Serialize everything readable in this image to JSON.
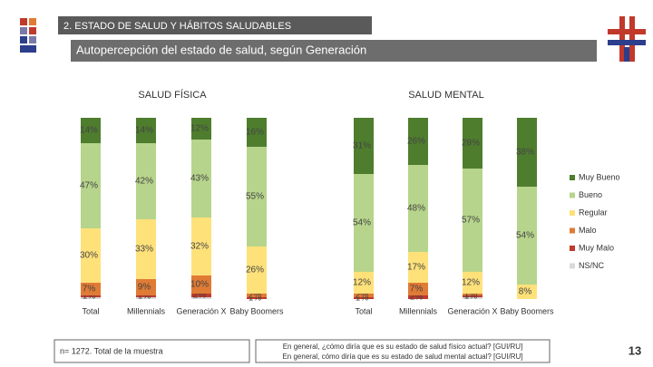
{
  "slide": {
    "section": "2. ESTADO DE SALUD Y HÁBITOS SALUDABLES",
    "subtitle": "Autopercepción del estado de salud, según Generación",
    "sample": "n= 1272. Total de la muestra",
    "question": [
      "En general, ¿cómo diría que es su estado de salud físico actual? [GUI/RU]",
      "En general, cómo diría que es su estado de salud mental actual? [GUI/RU]"
    ],
    "page": "13"
  },
  "chart_data": [
    {
      "type": "stacked_bar",
      "title": "SALUD FÍSICA",
      "categories": [
        "Total",
        "Millennials",
        "Generación X",
        "Baby Boomers"
      ],
      "series": [
        {
          "name": "NS/NC",
          "color": "#d9d9d9",
          "values": [
            1,
            1,
            1,
            0
          ],
          "value_labels": [
            null,
            null,
            null,
            null
          ]
        },
        {
          "name": "Muy Malo",
          "color": "#c0392b",
          "values": [
            1,
            1,
            2,
            1
          ],
          "value_labels": [
            "1%",
            "1%",
            "2%",
            "1%"
          ]
        },
        {
          "name": "Malo",
          "color": "#e07b35",
          "values": [
            7,
            9,
            10,
            2
          ],
          "value_labels": [
            "7%",
            "9%",
            "10%",
            "2%"
          ]
        },
        {
          "name": "Regular",
          "color": "#ffe17a",
          "values": [
            30,
            33,
            32,
            26
          ],
          "value_labels": [
            "30%",
            "33%",
            "32%",
            "26%"
          ]
        },
        {
          "name": "Bueno",
          "color": "#b6d48b",
          "values": [
            47,
            42,
            43,
            55
          ],
          "value_labels": [
            "47%",
            "42%",
            "43%",
            "55%"
          ]
        },
        {
          "name": "Muy Bueno",
          "color": "#4e7d2e",
          "values": [
            14,
            14,
            12,
            16
          ],
          "value_labels": [
            "14%",
            "14%",
            "12%",
            "16%"
          ]
        }
      ]
    },
    {
      "type": "stacked_bar",
      "title": "SALUD MENTAL",
      "categories": [
        "Total",
        "Millennials",
        "Generación X",
        "Baby Boomers"
      ],
      "series": [
        {
          "name": "NS/NC",
          "color": "#d9d9d9",
          "values": [
            0,
            0,
            1,
            0
          ],
          "value_labels": [
            null,
            null,
            null,
            null
          ]
        },
        {
          "name": "Muy Malo",
          "color": "#c0392b",
          "values": [
            1,
            2,
            1,
            0
          ],
          "value_labels": [
            "1%",
            "2%",
            "1%",
            null
          ]
        },
        {
          "name": "Malo",
          "color": "#e07b35",
          "values": [
            2,
            7,
            1,
            0
          ],
          "value_labels": [
            "2%",
            "7%",
            "1%",
            null
          ]
        },
        {
          "name": "Regular",
          "color": "#ffe17a",
          "values": [
            12,
            17,
            12,
            8
          ],
          "value_labels": [
            "12%",
            "17%",
            "12%",
            "8%"
          ]
        },
        {
          "name": "Bueno",
          "color": "#b6d48b",
          "values": [
            54,
            48,
            57,
            54
          ],
          "value_labels": [
            "54%",
            "48%",
            "57%",
            "54%"
          ]
        },
        {
          "name": "Muy Bueno",
          "color": "#4e7d2e",
          "values": [
            31,
            26,
            28,
            38
          ],
          "value_labels": [
            "31%",
            "26%",
            "28%",
            "38%"
          ]
        }
      ]
    }
  ]
}
